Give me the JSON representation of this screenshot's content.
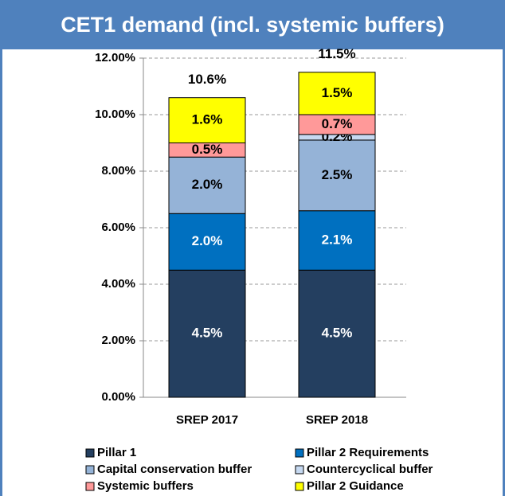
{
  "chart_data": {
    "type": "stacked_bar",
    "title": "CET1 demand (incl. systemic buffers)",
    "categories": [
      "SREP 2017",
      "SREP 2018"
    ],
    "series": [
      {
        "name": "Pillar 1",
        "color": "#243f60",
        "label_color": "#ffffff",
        "values": [
          4.5,
          4.5
        ],
        "value_labels": [
          "4.5%",
          "4.5%"
        ]
      },
      {
        "name": "Pillar 2 Requirements",
        "color": "#0070c0",
        "label_color": "#ffffff",
        "values": [
          2.0,
          2.1
        ],
        "value_labels": [
          "2.0%",
          "2.1%"
        ]
      },
      {
        "name": "Capital conservation buffer",
        "color": "#95b3d7",
        "label_color": "#000000",
        "values": [
          2.0,
          2.5
        ],
        "value_labels": [
          "2.0%",
          "2.5%"
        ]
      },
      {
        "name": "Countercyclical buffer",
        "color": "#c6d9f1",
        "label_color": "#000000",
        "values": [
          null,
          0.2
        ],
        "value_labels": [
          null,
          "0.2%"
        ]
      },
      {
        "name": "Systemic buffers",
        "color": "#ff9999",
        "label_color": "#000000",
        "values": [
          0.5,
          0.7
        ],
        "value_labels": [
          "0.5%",
          "0.7%"
        ]
      },
      {
        "name": "Pillar 2 Guidance",
        "color": "#ffff00",
        "label_color": "#000000",
        "values": [
          1.6,
          1.5
        ],
        "value_labels": [
          "1.6%",
          "1.5%"
        ]
      }
    ],
    "totals": [
      10.6,
      11.5
    ],
    "total_labels": [
      "10.6%",
      "11.5%"
    ],
    "ylim": [
      0,
      12
    ],
    "yticks": [
      {
        "value": 0,
        "label": "0.00%"
      },
      {
        "value": 2,
        "label": "2.00%"
      },
      {
        "value": 4,
        "label": "4.00%"
      },
      {
        "value": 6,
        "label": "6.00%"
      },
      {
        "value": 8,
        "label": "8.00%"
      },
      {
        "value": 10,
        "label": "10.00%"
      },
      {
        "value": 12,
        "label": "12.00%"
      }
    ],
    "grid": true
  }
}
